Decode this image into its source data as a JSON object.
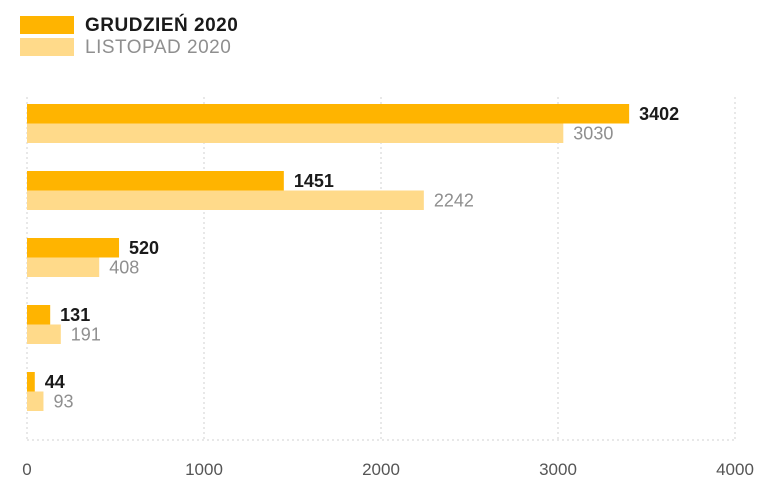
{
  "colors": {
    "series1": "#FFB400",
    "series2": "#FFDA8A",
    "label1": "#1a1a1a",
    "label2": "#8f8f8f",
    "grid": "#d0d0d0",
    "axis": "#555555"
  },
  "chart_data": {
    "type": "bar",
    "orientation": "horizontal",
    "categories": [
      "",
      "",
      "",
      "",
      ""
    ],
    "series": [
      {
        "name": "GRUDZIEŃ 2020",
        "values": [
          3402,
          1451,
          520,
          131,
          44
        ]
      },
      {
        "name": "LISTOPAD 2020",
        "values": [
          3030,
          2242,
          408,
          191,
          93
        ]
      }
    ],
    "xlim": [
      0,
      4000
    ],
    "xticks": [
      "0",
      "1000",
      "2000",
      "3000",
      "4000"
    ],
    "grid": true,
    "legend_position": "top-left"
  }
}
